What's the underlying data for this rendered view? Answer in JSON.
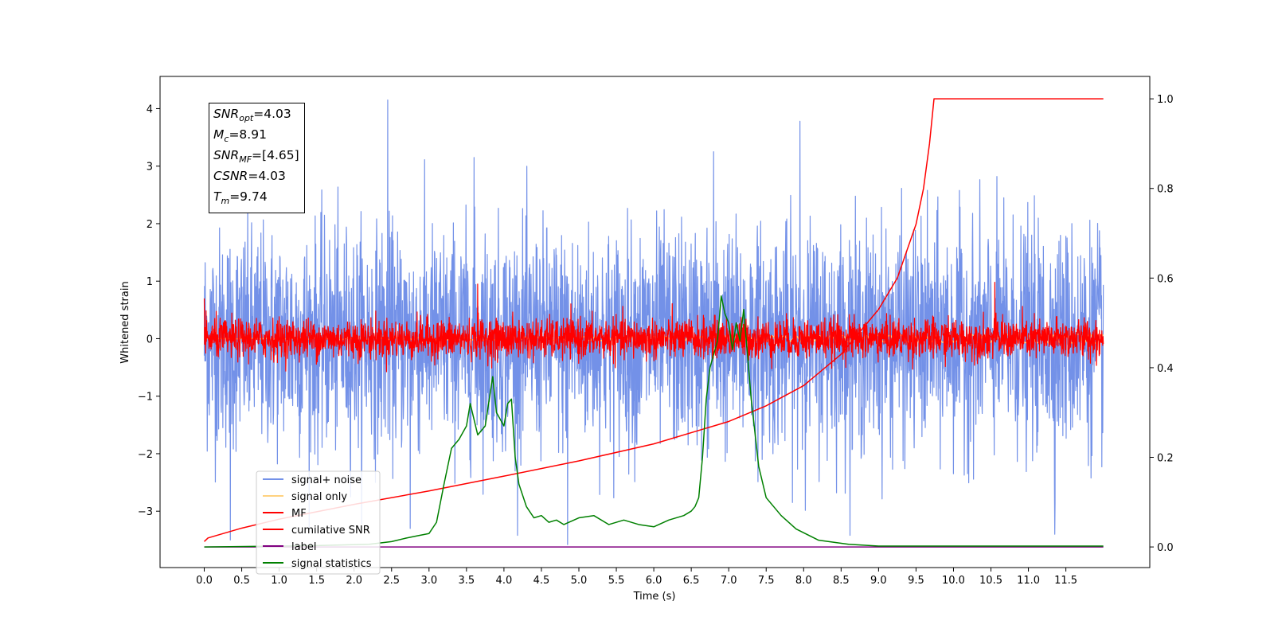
{
  "chart_data": {
    "type": "line",
    "title": "",
    "xlabel": "Time (s)",
    "ylabel": "Whitened strain",
    "y2label": "",
    "xlim": [
      -0.59,
      12.62
    ],
    "ylim": [
      -3.98,
      4.56
    ],
    "y2lim": [
      -0.046,
      1.05
    ],
    "x_ticks": [
      0.0,
      0.5,
      1.0,
      1.5,
      2.0,
      2.5,
      3.0,
      3.5,
      4.0,
      4.5,
      5.0,
      5.5,
      6.0,
      6.5,
      7.0,
      7.5,
      8.0,
      8.5,
      9.0,
      9.5,
      10.0,
      10.5,
      11.0,
      11.5
    ],
    "x_tick_labels": [
      "0.0",
      "0.5",
      "1.0",
      "1.5",
      "2.0",
      "2.5",
      "3.0",
      "3.5",
      "4.0",
      "4.5",
      "5.0",
      "5.5",
      "6.0",
      "6.5",
      "7.0",
      "7.5",
      "8.0",
      "8.5",
      "9.0",
      "9.5",
      "10.0",
      "10.5",
      "11.0",
      "11.5"
    ],
    "y_ticks": [
      -3,
      -2,
      -1,
      0,
      1,
      2,
      3,
      4
    ],
    "y_tick_labels": [
      "−3",
      "−2",
      "−1",
      "0",
      "1",
      "2",
      "3",
      "4"
    ],
    "y2_ticks": [
      0.0,
      0.2,
      0.4,
      0.6,
      0.8,
      1.0
    ],
    "y2_tick_labels": [
      "0.0",
      "0.2",
      "0.4",
      "0.6",
      "0.8",
      "1.0"
    ],
    "grid": false,
    "legend_position": "lower-left",
    "series": [
      {
        "name": "signal+ noise",
        "axis": "left",
        "color": "#7391e8",
        "style": "dense noise",
        "x_range": [
          0.0,
          12.0
        ],
        "std": 0.95,
        "peaks": [
          {
            "x": 2.45,
            "y": 4.15
          },
          {
            "x": 7.95,
            "y": 3.78
          },
          {
            "x": 6.8,
            "y": 3.25
          },
          {
            "x": 3.6,
            "y": 3.15
          },
          {
            "x": 0.35,
            "y": -3.5
          },
          {
            "x": 11.35,
            "y": -3.4
          },
          {
            "x": 4.85,
            "y": -3.58
          },
          {
            "x": 2.75,
            "y": -3.3
          }
        ]
      },
      {
        "name": "signal only",
        "axis": "left",
        "color": "#ffd27f",
        "x_range": [
          0.0,
          12.0
        ],
        "amplitude": 0.08
      },
      {
        "name": "MF",
        "axis": "left",
        "color": "#ff0000",
        "style": "dense noise",
        "x_range": [
          0.0,
          12.0
        ],
        "std": 0.17,
        "peaks": [
          {
            "x": 3.65,
            "y": 0.95
          },
          {
            "x": 10.55,
            "y": 0.98
          },
          {
            "x": 0.0,
            "y": 0.7
          }
        ]
      },
      {
        "name": "cumilative SNR",
        "axis": "right",
        "color": "#ff0000",
        "x": [
          0.0,
          0.05,
          0.5,
          1.0,
          2.0,
          3.0,
          4.0,
          5.0,
          6.0,
          7.0,
          7.5,
          8.0,
          8.5,
          9.0,
          9.25,
          9.5,
          9.6,
          9.68,
          9.74,
          12.0
        ],
        "values": [
          0.012,
          0.02,
          0.042,
          0.062,
          0.095,
          0.125,
          0.158,
          0.192,
          0.23,
          0.28,
          0.315,
          0.36,
          0.43,
          0.53,
          0.6,
          0.72,
          0.8,
          0.9,
          1.0,
          1.0
        ]
      },
      {
        "name": "label",
        "axis": "right",
        "color": "#800080",
        "x": [
          0.0,
          12.0
        ],
        "values": [
          0.0,
          0.0
        ]
      },
      {
        "name": "signal statistics",
        "axis": "right",
        "color": "#008000",
        "x": [
          0.0,
          1.5,
          2.2,
          2.5,
          2.7,
          2.85,
          3.0,
          3.1,
          3.2,
          3.3,
          3.4,
          3.5,
          3.55,
          3.65,
          3.75,
          3.85,
          3.9,
          4.0,
          4.05,
          4.1,
          4.15,
          4.2,
          4.3,
          4.4,
          4.5,
          4.6,
          4.7,
          4.8,
          5.0,
          5.2,
          5.4,
          5.6,
          5.8,
          6.0,
          6.2,
          6.4,
          6.5,
          6.55,
          6.6,
          6.65,
          6.7,
          6.75,
          6.85,
          6.9,
          6.95,
          7.0,
          7.05,
          7.1,
          7.15,
          7.2,
          7.3,
          7.4,
          7.5,
          7.6,
          7.7,
          7.9,
          8.2,
          8.6,
          9.0,
          12.0
        ],
        "values": [
          0.0,
          0.003,
          0.006,
          0.012,
          0.02,
          0.025,
          0.03,
          0.055,
          0.14,
          0.22,
          0.24,
          0.27,
          0.32,
          0.25,
          0.27,
          0.38,
          0.3,
          0.27,
          0.32,
          0.33,
          0.2,
          0.14,
          0.09,
          0.065,
          0.07,
          0.055,
          0.06,
          0.05,
          0.065,
          0.07,
          0.05,
          0.06,
          0.05,
          0.045,
          0.06,
          0.07,
          0.08,
          0.09,
          0.11,
          0.2,
          0.33,
          0.4,
          0.46,
          0.56,
          0.52,
          0.5,
          0.44,
          0.5,
          0.46,
          0.53,
          0.33,
          0.18,
          0.11,
          0.09,
          0.07,
          0.04,
          0.015,
          0.006,
          0.002,
          0.002
        ]
      }
    ]
  },
  "info_box": {
    "lines": [
      {
        "sym": "SNR",
        "sub": "opt",
        "val": "=4.03"
      },
      {
        "sym": "M",
        "sub": "c",
        "val": "=8.91"
      },
      {
        "sym": "SNR",
        "sub": "MF",
        "val": "=[4.65]"
      },
      {
        "sym": "CSNR",
        "sub": "",
        "val": "=4.03"
      },
      {
        "sym": "T",
        "sub": "m",
        "val": "=9.74"
      }
    ]
  }
}
